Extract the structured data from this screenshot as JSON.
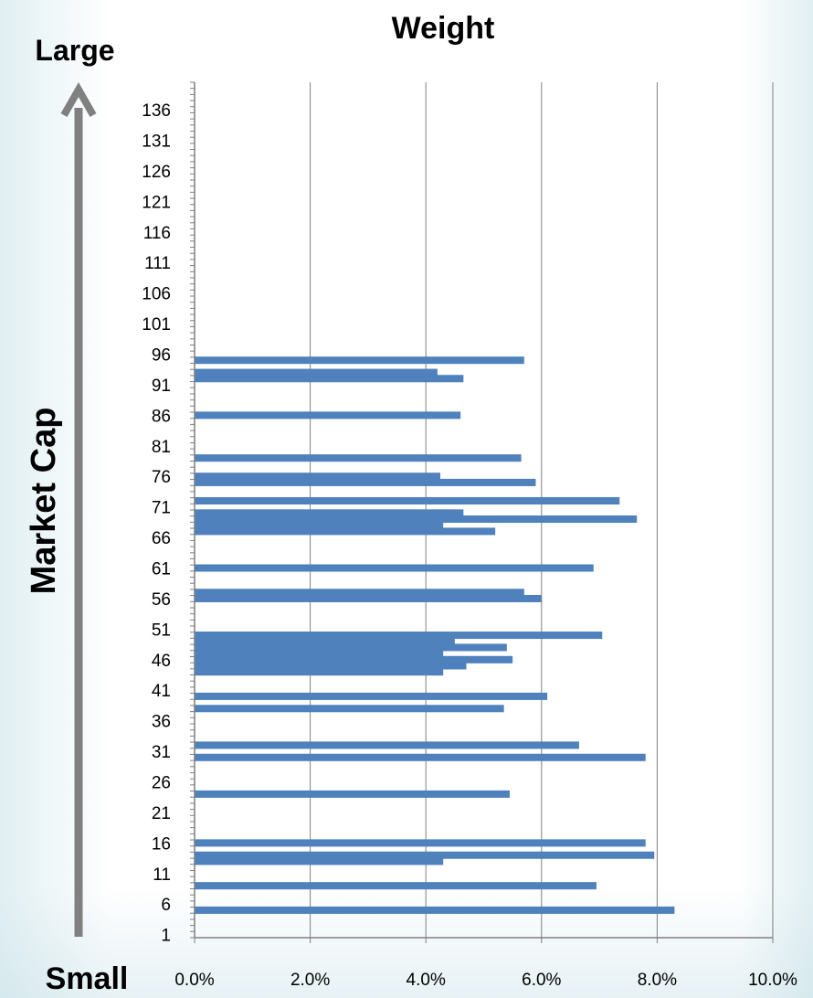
{
  "chart_data": {
    "type": "bar",
    "orientation": "horizontal",
    "title": "Weight",
    "ylabel": "Market Cap",
    "y_top_label": "Large",
    "y_bottom_label": "Small",
    "xlim": [
      0,
      10
    ],
    "ylim": [
      1,
      140
    ],
    "x_ticks": [
      {
        "value": 0,
        "label": "0.0%"
      },
      {
        "value": 2,
        "label": "2.0%"
      },
      {
        "value": 4,
        "label": "4.0%"
      },
      {
        "value": 6,
        "label": "6.0%"
      },
      {
        "value": 8,
        "label": "8.0%"
      },
      {
        "value": 10,
        "label": "10.0%"
      }
    ],
    "y_ticks": [
      {
        "value": 1,
        "label": "1"
      },
      {
        "value": 6,
        "label": "6"
      },
      {
        "value": 11,
        "label": "11"
      },
      {
        "value": 16,
        "label": "16"
      },
      {
        "value": 21,
        "label": "21"
      },
      {
        "value": 26,
        "label": "26"
      },
      {
        "value": 31,
        "label": "31"
      },
      {
        "value": 36,
        "label": "36"
      },
      {
        "value": 41,
        "label": "41"
      },
      {
        "value": 46,
        "label": "46"
      },
      {
        "value": 51,
        "label": "51"
      },
      {
        "value": 56,
        "label": "56"
      },
      {
        "value": 61,
        "label": "61"
      },
      {
        "value": 66,
        "label": "66"
      },
      {
        "value": 71,
        "label": "71"
      },
      {
        "value": 76,
        "label": "76"
      },
      {
        "value": 81,
        "label": "81"
      },
      {
        "value": 86,
        "label": "86"
      },
      {
        "value": 91,
        "label": "91"
      },
      {
        "value": 96,
        "label": "96"
      },
      {
        "value": 101,
        "label": "101"
      },
      {
        "value": 106,
        "label": "106"
      },
      {
        "value": 111,
        "label": "111"
      },
      {
        "value": 116,
        "label": "116"
      },
      {
        "value": 121,
        "label": "121"
      },
      {
        "value": 126,
        "label": "126"
      },
      {
        "value": 131,
        "label": "131"
      },
      {
        "value": 136,
        "label": "136"
      }
    ],
    "grid": "vertical",
    "bar_color": "#4F81BD",
    "series": [
      {
        "points": [
          {
            "rank": 5,
            "value": 8.3
          },
          {
            "rank": 9,
            "value": 6.95
          },
          {
            "rank": 13,
            "value": 4.3
          },
          {
            "rank": 14,
            "value": 7.95
          },
          {
            "rank": 16,
            "value": 7.8
          },
          {
            "rank": 24,
            "value": 5.45
          },
          {
            "rank": 30,
            "value": 7.8
          },
          {
            "rank": 32,
            "value": 6.65
          },
          {
            "rank": 38,
            "value": 5.35
          },
          {
            "rank": 40,
            "value": 6.1
          },
          {
            "rank": 44,
            "value": 4.3
          },
          {
            "rank": 45,
            "value": 4.7
          },
          {
            "rank": 46,
            "value": 5.5
          },
          {
            "rank": 47,
            "value": 4.3
          },
          {
            "rank": 48,
            "value": 5.4
          },
          {
            "rank": 49,
            "value": 4.5
          },
          {
            "rank": 50,
            "value": 7.05
          },
          {
            "rank": 56,
            "value": 6.0
          },
          {
            "rank": 57,
            "value": 5.7
          },
          {
            "rank": 61,
            "value": 6.9
          },
          {
            "rank": 67,
            "value": 5.2
          },
          {
            "rank": 68,
            "value": 4.3
          },
          {
            "rank": 69,
            "value": 7.65
          },
          {
            "rank": 70,
            "value": 4.65
          },
          {
            "rank": 72,
            "value": 7.35
          },
          {
            "rank": 75,
            "value": 5.9
          },
          {
            "rank": 76,
            "value": 4.25
          },
          {
            "rank": 79,
            "value": 5.65
          },
          {
            "rank": 86,
            "value": 4.6
          },
          {
            "rank": 92,
            "value": 4.65
          },
          {
            "rank": 93,
            "value": 4.2
          },
          {
            "rank": 95,
            "value": 5.7
          }
        ]
      }
    ]
  },
  "colors": {
    "bar": "#4F81BD",
    "grid": "#7F7F7F",
    "arrow": "#808080"
  }
}
